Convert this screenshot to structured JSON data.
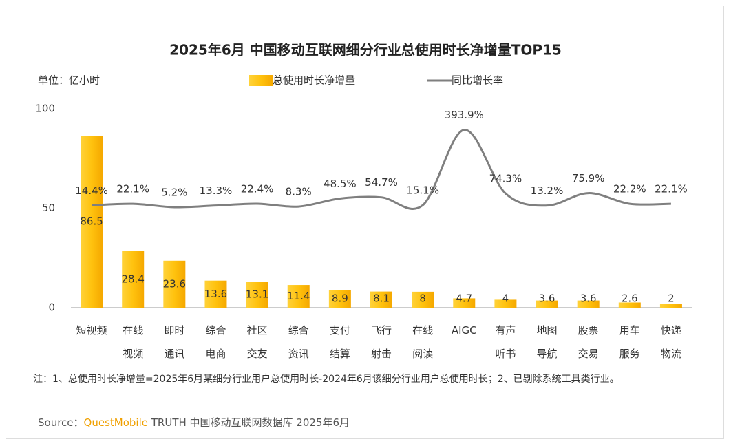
{
  "chart_data": {
    "type": "bar_line",
    "title": "2025年6月 中国移动互联网细分行业总使用时长净增量TOP15",
    "unit_label": "单位：亿小时",
    "legend": "top",
    "categories": [
      "短视频",
      "在线\n视频",
      "即时\n通讯",
      "综合\n电商",
      "社区\n交友",
      "综合\n资讯",
      "支付\n结算",
      "飞行\n射击",
      "在线\n阅读",
      "AIGC",
      "有声\n听书",
      "地图\n导航",
      "股票\n交易",
      "用车\n服务",
      "快递\n物流"
    ],
    "series": [
      {
        "name": "总使用时长净增量",
        "type": "bar",
        "color": "#ffb800",
        "values": [
          86.5,
          28.4,
          23.6,
          13.6,
          13.1,
          11.4,
          8.9,
          8.1,
          8.0,
          4.7,
          4.0,
          3.6,
          3.6,
          2.6,
          2.0
        ]
      },
      {
        "name": "同比增长率",
        "type": "line",
        "axis": "y2",
        "color": "#7f7f7f",
        "values": [
          14.4,
          22.1,
          5.2,
          13.3,
          22.4,
          8.3,
          48.5,
          54.7,
          15.1,
          393.9,
          74.3,
          13.2,
          75.9,
          22.2,
          22.1
        ],
        "value_labels": [
          "14.4%",
          "22.1%",
          "5.2%",
          "13.3%",
          "22.4%",
          "8.3%",
          "48.5%",
          "54.7%",
          "15.1%",
          "393.9%",
          "74.3%",
          "13.2%",
          "75.9%",
          "22.2%",
          "22.1%"
        ]
      }
    ],
    "ylim": [
      0,
      100
    ],
    "yticks": [
      0,
      50,
      100
    ],
    "y2lim": [
      -500,
      500
    ],
    "grid": false,
    "note": "注：1、总使用时长净增量=2025年6月某细分行业用户总使用时长-2024年6月该细分行业用户总使用时长；2、已剔除系统工具类行业。",
    "source": {
      "label": "Source：",
      "brand": "QuestMobile",
      "text": " TRUTH 中国移动互联网数据库 2025年6月"
    }
  }
}
